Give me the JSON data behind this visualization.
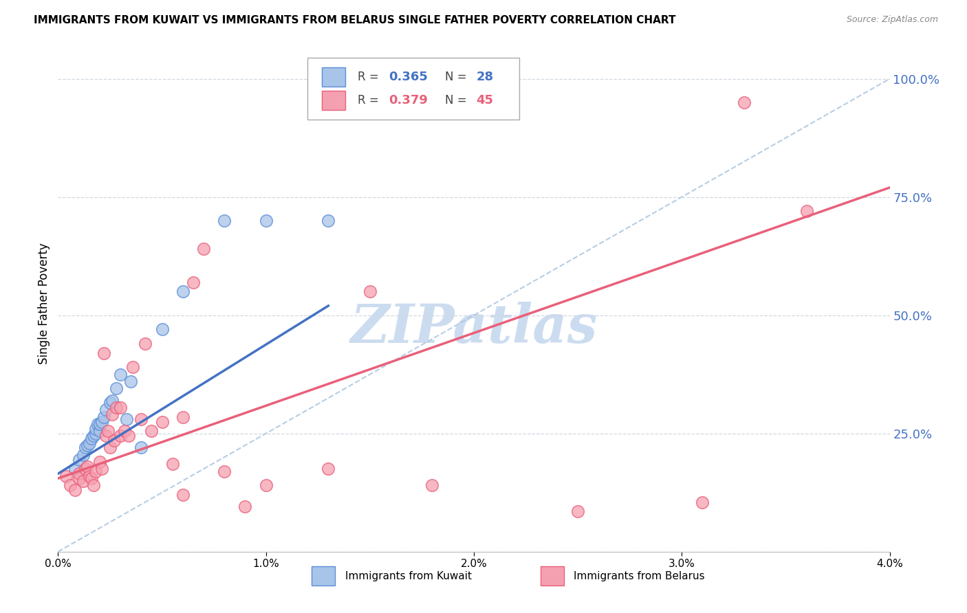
{
  "title": "IMMIGRANTS FROM KUWAIT VS IMMIGRANTS FROM BELARUS SINGLE FATHER POVERTY CORRELATION CHART",
  "source": "Source: ZipAtlas.com",
  "ylabel": "Single Father Poverty",
  "xlim": [
    0.0,
    0.04
  ],
  "ylim": [
    0.0,
    1.05
  ],
  "ytick_vals": [
    0.0,
    0.25,
    0.5,
    0.75,
    1.0
  ],
  "ytick_labels": [
    "",
    "25.0%",
    "50.0%",
    "75.0%",
    "100.0%"
  ],
  "xtick_vals": [
    0.0,
    0.01,
    0.02,
    0.03,
    0.04
  ],
  "xtick_labels": [
    "0.0%",
    "1.0%",
    "2.0%",
    "3.0%",
    "4.0%"
  ],
  "legend_r1": "0.365",
  "legend_n1": "28",
  "legend_r2": "0.379",
  "legend_n2": "45",
  "color_kuwait_fill": "#a8c4e8",
  "color_kuwait_edge": "#5b8dd9",
  "color_belarus_fill": "#f5a0b0",
  "color_belarus_edge": "#e8607a",
  "color_trend_kuwait": "#4472c4",
  "color_trend_belarus": "#e8607a",
  "color_diag": "#b0c8e0",
  "color_ytick": "#4472c4",
  "color_grid": "#d0d8e0",
  "watermark": "ZIPatlas",
  "watermark_color": "#ccdcf0",
  "scatter_kuwait_x": [
    0.0008,
    0.001,
    0.0012,
    0.0013,
    0.0014,
    0.0015,
    0.0016,
    0.0017,
    0.0018,
    0.0018,
    0.0019,
    0.002,
    0.002,
    0.0021,
    0.0022,
    0.0023,
    0.0025,
    0.0026,
    0.0028,
    0.003,
    0.0033,
    0.0035,
    0.004,
    0.005,
    0.006,
    0.008,
    0.01,
    0.013
  ],
  "scatter_kuwait_y": [
    0.175,
    0.195,
    0.205,
    0.22,
    0.225,
    0.23,
    0.24,
    0.245,
    0.25,
    0.26,
    0.27,
    0.255,
    0.27,
    0.275,
    0.285,
    0.3,
    0.315,
    0.32,
    0.345,
    0.375,
    0.28,
    0.36,
    0.22,
    0.47,
    0.55,
    0.7,
    0.7,
    0.7
  ],
  "scatter_belarus_x": [
    0.0004,
    0.0006,
    0.0008,
    0.001,
    0.001,
    0.0012,
    0.0013,
    0.0014,
    0.0015,
    0.0016,
    0.0017,
    0.0018,
    0.002,
    0.0021,
    0.0022,
    0.0023,
    0.0024,
    0.0025,
    0.0026,
    0.0027,
    0.0028,
    0.003,
    0.003,
    0.0032,
    0.0034,
    0.0036,
    0.004,
    0.0042,
    0.0045,
    0.005,
    0.0055,
    0.006,
    0.006,
    0.0065,
    0.007,
    0.008,
    0.009,
    0.01,
    0.013,
    0.015,
    0.018,
    0.025,
    0.031,
    0.033,
    0.036
  ],
  "scatter_belarus_y": [
    0.16,
    0.14,
    0.13,
    0.155,
    0.165,
    0.15,
    0.175,
    0.18,
    0.16,
    0.155,
    0.14,
    0.17,
    0.19,
    0.175,
    0.42,
    0.245,
    0.255,
    0.22,
    0.29,
    0.235,
    0.305,
    0.245,
    0.305,
    0.255,
    0.245,
    0.39,
    0.28,
    0.44,
    0.255,
    0.275,
    0.185,
    0.12,
    0.285,
    0.57,
    0.64,
    0.17,
    0.095,
    0.14,
    0.175,
    0.55,
    0.14,
    0.085,
    0.105,
    0.95,
    0.72
  ],
  "trend_kuwait_x0": 0.0,
  "trend_kuwait_x1": 0.013,
  "trend_kuwait_y0": 0.165,
  "trend_kuwait_y1": 0.52,
  "trend_belarus_x0": 0.0,
  "trend_belarus_x1": 0.04,
  "trend_belarus_y0": 0.155,
  "trend_belarus_y1": 0.77
}
